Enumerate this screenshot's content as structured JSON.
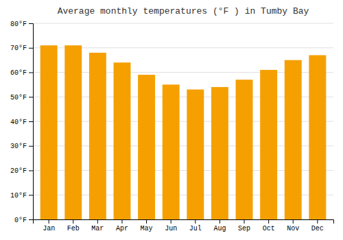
{
  "chart_data": {
    "type": "bar",
    "title": "Average monthly temperatures (°F ) in Tumby Bay",
    "categories": [
      "Jan",
      "Feb",
      "Mar",
      "Apr",
      "May",
      "Jun",
      "Jul",
      "Aug",
      "Sep",
      "Oct",
      "Nov",
      "Dec"
    ],
    "values": [
      71,
      71,
      68,
      64,
      59,
      55,
      53,
      54,
      57,
      61,
      65,
      67
    ],
    "color": "#F5A000",
    "ylim": [
      0,
      80
    ],
    "yticks": [
      {
        "value": 0,
        "label": "0°F"
      },
      {
        "value": 10,
        "label": "10°F"
      },
      {
        "value": 20,
        "label": "20°F"
      },
      {
        "value": 30,
        "label": "30°F"
      },
      {
        "value": 40,
        "label": "40°F"
      },
      {
        "value": 50,
        "label": "50°F"
      },
      {
        "value": 60,
        "label": "60°F"
      },
      {
        "value": 70,
        "label": "70°F"
      },
      {
        "value": 80,
        "label": "80°F"
      }
    ],
    "grid": true
  }
}
